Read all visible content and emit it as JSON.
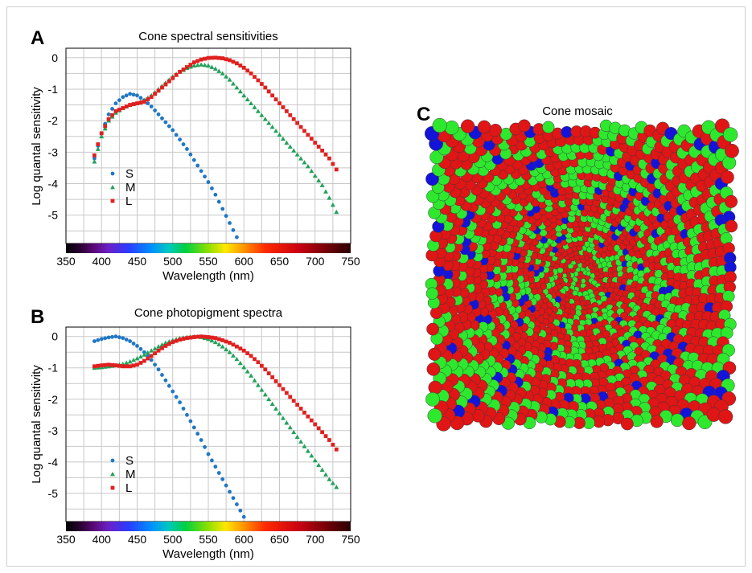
{
  "colors": {
    "S": "#1f77c4",
    "M": "#22a15a",
    "L": "#e02020",
    "mosaic_S": "#1414d8",
    "mosaic_M": "#2ee82e",
    "mosaic_L": "#e01515"
  },
  "chart_data": [
    {
      "panel": "A",
      "type": "scatter",
      "title": "Cone spectral sensitivities",
      "xlabel": "Wavelength (nm)",
      "ylabel": "Log quantal sensitivity",
      "xlim": [
        350,
        750
      ],
      "ylim": [
        -5.9,
        0.3
      ],
      "xticks": [
        "350",
        "400",
        "450",
        "500",
        "550",
        "600",
        "650",
        "700",
        "750"
      ],
      "yticks": [
        "0",
        "-1",
        "-2",
        "-3",
        "-4",
        "-5"
      ],
      "grid": true,
      "legend_position": "lower-left",
      "colorbar": "visible spectrum 350-750 nm",
      "series": [
        {
          "name": "S",
          "marker": "circle",
          "points": [
            [
              390,
              -3.2
            ],
            [
              400,
              -2.4
            ],
            [
              410,
              -1.8
            ],
            [
              420,
              -1.45
            ],
            [
              430,
              -1.25
            ],
            [
              440,
              -1.15
            ],
            [
              450,
              -1.2
            ],
            [
              460,
              -1.35
            ],
            [
              470,
              -1.55
            ],
            [
              480,
              -1.8
            ],
            [
              490,
              -2.05
            ],
            [
              500,
              -2.3
            ],
            [
              510,
              -2.6
            ],
            [
              520,
              -2.9
            ],
            [
              530,
              -3.25
            ],
            [
              540,
              -3.6
            ],
            [
              550,
              -3.95
            ],
            [
              560,
              -4.35
            ],
            [
              570,
              -4.8
            ],
            [
              580,
              -5.25
            ],
            [
              590,
              -5.7
            ]
          ]
        },
        {
          "name": "M",
          "marker": "triangle",
          "points": [
            [
              390,
              -3.3
            ],
            [
              400,
              -2.5
            ],
            [
              410,
              -2.0
            ],
            [
              420,
              -1.75
            ],
            [
              430,
              -1.6
            ],
            [
              440,
              -1.5
            ],
            [
              450,
              -1.45
            ],
            [
              460,
              -1.35
            ],
            [
              470,
              -1.2
            ],
            [
              480,
              -1.0
            ],
            [
              490,
              -0.8
            ],
            [
              500,
              -0.6
            ],
            [
              510,
              -0.45
            ],
            [
              520,
              -0.33
            ],
            [
              530,
              -0.25
            ],
            [
              540,
              -0.22
            ],
            [
              550,
              -0.25
            ],
            [
              560,
              -0.35
            ],
            [
              570,
              -0.5
            ],
            [
              580,
              -0.7
            ],
            [
              590,
              -0.95
            ],
            [
              600,
              -1.2
            ],
            [
              610,
              -1.45
            ],
            [
              620,
              -1.7
            ],
            [
              630,
              -1.95
            ],
            [
              640,
              -2.2
            ],
            [
              650,
              -2.45
            ],
            [
              660,
              -2.7
            ],
            [
              670,
              -2.95
            ],
            [
              680,
              -3.2
            ],
            [
              690,
              -3.45
            ],
            [
              700,
              -3.75
            ],
            [
              710,
              -4.05
            ],
            [
              720,
              -4.45
            ],
            [
              730,
              -4.9
            ]
          ]
        },
        {
          "name": "L",
          "marker": "square",
          "points": [
            [
              390,
              -3.1
            ],
            [
              400,
              -2.4
            ],
            [
              410,
              -1.95
            ],
            [
              420,
              -1.7
            ],
            [
              430,
              -1.6
            ],
            [
              440,
              -1.5
            ],
            [
              450,
              -1.45
            ],
            [
              460,
              -1.4
            ],
            [
              470,
              -1.25
            ],
            [
              480,
              -1.05
            ],
            [
              490,
              -0.85
            ],
            [
              500,
              -0.65
            ],
            [
              510,
              -0.45
            ],
            [
              520,
              -0.3
            ],
            [
              530,
              -0.15
            ],
            [
              540,
              -0.06
            ],
            [
              550,
              -0.01
            ],
            [
              560,
              0.0
            ],
            [
              570,
              -0.02
            ],
            [
              580,
              -0.08
            ],
            [
              590,
              -0.18
            ],
            [
              600,
              -0.32
            ],
            [
              610,
              -0.5
            ],
            [
              620,
              -0.72
            ],
            [
              630,
              -0.95
            ],
            [
              640,
              -1.2
            ],
            [
              650,
              -1.45
            ],
            [
              660,
              -1.7
            ],
            [
              670,
              -1.95
            ],
            [
              680,
              -2.2
            ],
            [
              690,
              -2.45
            ],
            [
              700,
              -2.7
            ],
            [
              710,
              -2.95
            ],
            [
              720,
              -3.2
            ],
            [
              730,
              -3.55
            ]
          ]
        }
      ]
    },
    {
      "panel": "B",
      "type": "scatter",
      "title": "Cone photopigment spectra",
      "xlabel": "Wavelength (nm)",
      "ylabel": "Log quantal sensitivity",
      "xlim": [
        350,
        750
      ],
      "ylim": [
        -5.9,
        0.3
      ],
      "xticks": [
        "350",
        "400",
        "450",
        "500",
        "550",
        "600",
        "650",
        "700",
        "750"
      ],
      "yticks": [
        "0",
        "-1",
        "-2",
        "-3",
        "-4",
        "-5"
      ],
      "grid": true,
      "legend_position": "lower-left",
      "colorbar": "visible spectrum 350-750 nm",
      "series": [
        {
          "name": "S",
          "marker": "circle",
          "points": [
            [
              390,
              -0.15
            ],
            [
              400,
              -0.08
            ],
            [
              410,
              -0.03
            ],
            [
              420,
              0.0
            ],
            [
              430,
              -0.05
            ],
            [
              440,
              -0.15
            ],
            [
              450,
              -0.3
            ],
            [
              460,
              -0.5
            ],
            [
              470,
              -0.75
            ],
            [
              480,
              -1.05
            ],
            [
              490,
              -1.4
            ],
            [
              500,
              -1.75
            ],
            [
              510,
              -2.1
            ],
            [
              520,
              -2.5
            ],
            [
              530,
              -2.9
            ],
            [
              540,
              -3.3
            ],
            [
              550,
              -3.75
            ],
            [
              560,
              -4.15
            ],
            [
              570,
              -4.55
            ],
            [
              580,
              -4.95
            ],
            [
              590,
              -5.35
            ],
            [
              600,
              -5.75
            ]
          ]
        },
        {
          "name": "M",
          "marker": "triangle",
          "points": [
            [
              390,
              -1.0
            ],
            [
              400,
              -0.98
            ],
            [
              410,
              -0.95
            ],
            [
              420,
              -0.92
            ],
            [
              430,
              -0.88
            ],
            [
              440,
              -0.8
            ],
            [
              450,
              -0.7
            ],
            [
              460,
              -0.58
            ],
            [
              470,
              -0.45
            ],
            [
              480,
              -0.32
            ],
            [
              490,
              -0.2
            ],
            [
              500,
              -0.12
            ],
            [
              510,
              -0.06
            ],
            [
              520,
              -0.02
            ],
            [
              530,
              0.0
            ],
            [
              540,
              -0.02
            ],
            [
              550,
              -0.08
            ],
            [
              560,
              -0.18
            ],
            [
              570,
              -0.32
            ],
            [
              580,
              -0.5
            ],
            [
              590,
              -0.72
            ],
            [
              600,
              -0.98
            ],
            [
              610,
              -1.25
            ],
            [
              620,
              -1.55
            ],
            [
              630,
              -1.85
            ],
            [
              640,
              -2.15
            ],
            [
              650,
              -2.45
            ],
            [
              660,
              -2.75
            ],
            [
              670,
              -3.05
            ],
            [
              680,
              -3.35
            ],
            [
              690,
              -3.65
            ],
            [
              700,
              -3.95
            ],
            [
              710,
              -4.25
            ],
            [
              720,
              -4.55
            ],
            [
              730,
              -4.8
            ]
          ]
        },
        {
          "name": "L",
          "marker": "square",
          "points": [
            [
              390,
              -0.95
            ],
            [
              400,
              -0.92
            ],
            [
              410,
              -0.9
            ],
            [
              420,
              -0.92
            ],
            [
              430,
              -0.95
            ],
            [
              440,
              -0.95
            ],
            [
              450,
              -0.9
            ],
            [
              460,
              -0.78
            ],
            [
              470,
              -0.62
            ],
            [
              480,
              -0.45
            ],
            [
              490,
              -0.3
            ],
            [
              500,
              -0.18
            ],
            [
              510,
              -0.1
            ],
            [
              520,
              -0.05
            ],
            [
              530,
              -0.02
            ],
            [
              540,
              0.0
            ],
            [
              550,
              -0.02
            ],
            [
              560,
              -0.05
            ],
            [
              570,
              -0.12
            ],
            [
              580,
              -0.2
            ],
            [
              590,
              -0.32
            ],
            [
              600,
              -0.45
            ],
            [
              610,
              -0.62
            ],
            [
              620,
              -0.82
            ],
            [
              630,
              -1.05
            ],
            [
              640,
              -1.3
            ],
            [
              650,
              -1.55
            ],
            [
              660,
              -1.8
            ],
            [
              670,
              -2.05
            ],
            [
              680,
              -2.3
            ],
            [
              690,
              -2.55
            ],
            [
              700,
              -2.8
            ],
            [
              710,
              -3.05
            ],
            [
              720,
              -3.3
            ],
            [
              730,
              -3.6
            ]
          ]
        }
      ]
    }
  ],
  "mosaic": {
    "panel": "C",
    "title": "Cone mosaic",
    "type": "cone-mosaic",
    "classes": [
      "L",
      "M",
      "S"
    ]
  }
}
